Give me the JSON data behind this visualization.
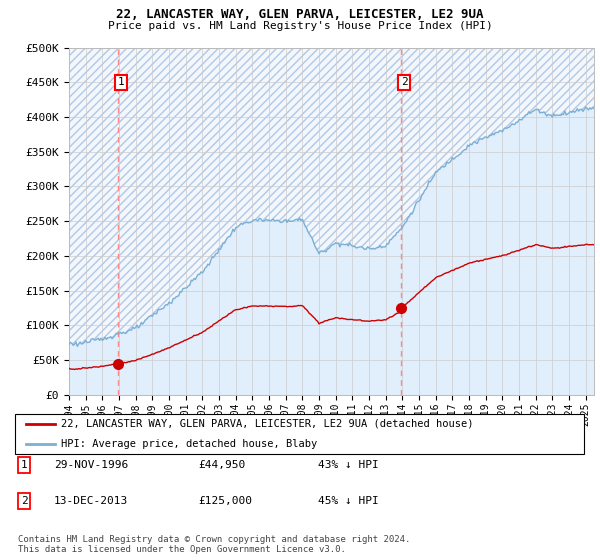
{
  "title1": "22, LANCASTER WAY, GLEN PARVA, LEICESTER, LE2 9UA",
  "title2": "Price paid vs. HM Land Registry's House Price Index (HPI)",
  "sale1_price": 44950,
  "sale2_price": 125000,
  "sale1_label": "1",
  "sale2_label": "2",
  "sale1_t": 1996.9167,
  "sale2_t": 2013.9167,
  "legend1": "22, LANCASTER WAY, GLEN PARVA, LEICESTER, LE2 9UA (detached house)",
  "legend2": "HPI: Average price, detached house, Blaby",
  "table_rows": [
    [
      "1",
      "29-NOV-1996",
      "£44,950",
      "43% ↓ HPI"
    ],
    [
      "2",
      "13-DEC-2013",
      "£125,000",
      "45% ↓ HPI"
    ]
  ],
  "footnote": "Contains HM Land Registry data © Crown copyright and database right 2024.\nThis data is licensed under the Open Government Licence v3.0.",
  "hpi_color": "#7bafd4",
  "hpi_fill_color": "#ddeeff",
  "hatch_color": "#b0c8e8",
  "sale_color": "#cc0000",
  "vline_color": "#ff8888",
  "grid_color": "#cccccc",
  "plot_bg": "#e8f0f8",
  "ylim": [
    0,
    500000
  ],
  "yticks": [
    0,
    50000,
    100000,
    150000,
    200000,
    250000,
    300000,
    350000,
    400000,
    450000,
    500000
  ],
  "ytick_labels": [
    "£0",
    "£50K",
    "£100K",
    "£150K",
    "£200K",
    "£250K",
    "£300K",
    "£350K",
    "£400K",
    "£450K",
    "£500K"
  ],
  "xlim_start": 1994.0,
  "xlim_end": 2025.5
}
